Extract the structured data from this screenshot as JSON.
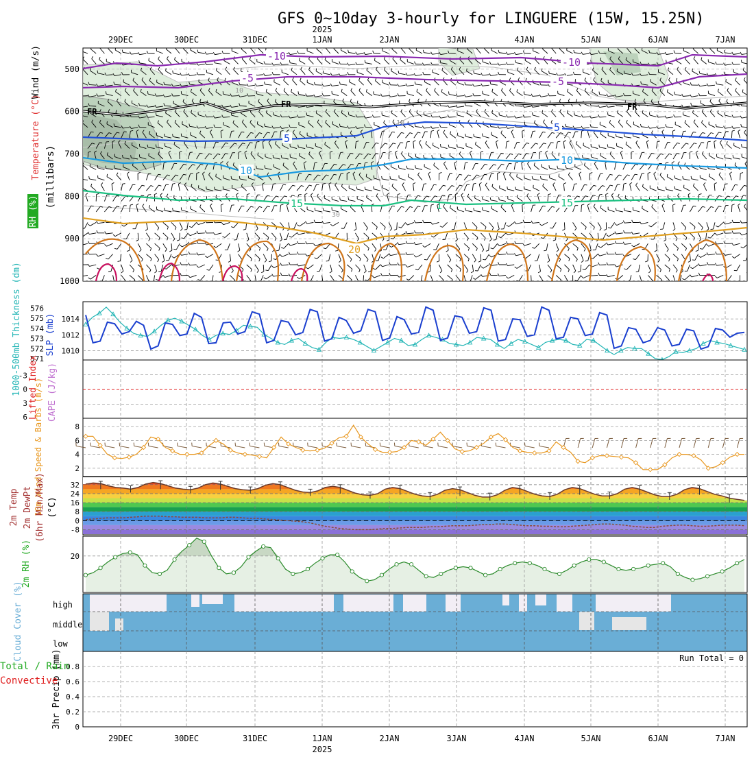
{
  "header": {
    "title": "GFS 0~10day 3-hourly for LINGUERE (15W, 15.25N)",
    "year": "2025",
    "run_total": "Run Total = 0"
  },
  "dates": [
    "29DEC",
    "30DEC",
    "31DEC",
    "1JAN",
    "2JAN",
    "3JAN",
    "4JAN",
    "5JAN",
    "6JAN",
    "7JAN"
  ],
  "colors": {
    "slp": "#1a3fcf",
    "thickness": "#22b5b5",
    "wind_speed": "#e8961c",
    "rh": "#2a8a2a",
    "cloud": "#6aaed6",
    "li": "#e02020",
    "cape": "#c070d0",
    "temp_label": "#e03030",
    "rh_label": "#22aa22"
  },
  "chart_data": [
    {
      "id": "upper-air",
      "type": "contour",
      "ylabel_parts": [
        "Wind (m/s)",
        "Temperature (°C)",
        "RH (%)",
        "(millibars)"
      ],
      "y_ticks": [
        "500",
        "600",
        "700",
        "800",
        "900",
        "1000"
      ],
      "ylim": [
        450,
        1000
      ],
      "contour_labels": [
        "-10",
        "-10",
        "-5",
        "-5",
        "FR",
        "FR",
        "FR",
        "-10",
        "5",
        "5",
        "10",
        "10",
        "15",
        "15",
        "1",
        "20",
        "30",
        "10"
      ],
      "isotherms_c": [
        -10,
        -5,
        0,
        5,
        10,
        15,
        20,
        25,
        30
      ]
    },
    {
      "id": "slp-thickness",
      "type": "line",
      "ylabel_left": "1000-500mb Thickness (dm)",
      "ylabel_right": "SLP (mb)",
      "left_ticks": [
        "576",
        "575",
        "574",
        "573",
        "572",
        "571"
      ],
      "right_ticks": [
        "1014",
        "1012",
        "1010"
      ],
      "slp_range": [
        1009,
        1016
      ],
      "thick_range": [
        571,
        576.5
      ],
      "series": [
        {
          "name": "SLP (mb)",
          "values": [
            1014.5,
            1011.0,
            1011.2,
            1013.6,
            1013.4,
            1012.1,
            1012.4,
            1013.7,
            1013.2,
            1010.2,
            1010.6,
            1013.5,
            1013.3,
            1011.9,
            1012.1,
            1014.7,
            1014.2,
            1010.9,
            1011.0,
            1013.5,
            1013.6,
            1012.1,
            1012.4,
            1014.9,
            1014.6,
            1011.0,
            1011.3,
            1013.8,
            1013.6,
            1012.0,
            1012.3,
            1015.2,
            1014.9,
            1011.2,
            1011.5,
            1014.2,
            1013.8,
            1012.2,
            1012.5,
            1015.2,
            1014.9,
            1011.3,
            1011.6,
            1014.3,
            1013.9,
            1012.1,
            1012.3,
            1015.5,
            1015.1,
            1011.3,
            1011.6,
            1014.4,
            1014.2,
            1012.2,
            1012.4,
            1015.4,
            1015.1,
            1011.2,
            1011.4,
            1014.0,
            1013.9,
            1011.8,
            1012.0,
            1015.5,
            1015.1,
            1011.5,
            1011.7,
            1014.2,
            1014.0,
            1011.9,
            1012.1,
            1014.8,
            1014.5,
            1010.3,
            1010.6,
            1012.9,
            1012.7,
            1011.0,
            1011.3,
            1012.9,
            1012.6,
            1010.6,
            1010.8,
            1012.7,
            1012.5,
            1010.2,
            1010.5,
            1012.8,
            1012.6,
            1011.7,
            1012.2,
            1012.3
          ]
        },
        {
          "name": "Thickness (dm)",
          "values": [
            574.4,
            575.1,
            575.5,
            576.1,
            575.4,
            574.6,
            574.0,
            573.5,
            573.3,
            573.2,
            573.7,
            574.3,
            574.8,
            575.0,
            574.7,
            574.3,
            573.9,
            573.3,
            572.9,
            573.3,
            573.5,
            573.4,
            573.8,
            574.3,
            574.2,
            574.1,
            573.4,
            573.0,
            572.6,
            572.4,
            572.8,
            573.0,
            572.5,
            572.1,
            571.9,
            572.6,
            573.1,
            573.0,
            573.1,
            572.9,
            572.6,
            572.2,
            571.8,
            572.2,
            572.6,
            573.0,
            572.8,
            572.3,
            572.4,
            572.9,
            573.3,
            573.1,
            572.9,
            572.5,
            572.4,
            572.3,
            572.6,
            573.1,
            573.0,
            572.9,
            572.4,
            572.0,
            572.5,
            572.9,
            572.7,
            572.4,
            572.1,
            572.6,
            572.8,
            572.9,
            572.8,
            572.4,
            572.3,
            572.9,
            572.8,
            572.3,
            571.8,
            571.4,
            571.8,
            572.1,
            572.0,
            572.0,
            571.5,
            571.0,
            570.9,
            571.2,
            571.7,
            571.6,
            571.8,
            572.0,
            572.5,
            572.8,
            572.6,
            572.5,
            572.3,
            572.1,
            571.9
          ]
        }
      ]
    },
    {
      "id": "stability",
      "type": "line",
      "ylabel_left": "Lifted Index",
      "ylabel_right": "CAPE (J/kg)",
      "y_ticks": [
        "-3",
        "0",
        "3",
        "6"
      ],
      "ylim": [
        -6,
        6
      ]
    },
    {
      "id": "wind10m",
      "type": "line",
      "ylabel": "10m Wind Speed & Barbs (m/s)",
      "y_ticks": [
        "8",
        "6",
        "4",
        "2"
      ],
      "ylim": [
        1,
        9
      ],
      "series": [
        {
          "name": "10m Wind Speed (m/s)",
          "values": [
            6.6,
            6.6,
            5.3,
            4.0,
            3.5,
            3.4,
            3.6,
            4.0,
            5.0,
            6.5,
            6.2,
            5.0,
            4.5,
            4.0,
            4.0,
            4.0,
            4.2,
            5.2,
            6.0,
            5.5,
            4.6,
            4.2,
            4.0,
            3.9,
            3.7,
            3.5,
            5.0,
            6.5,
            5.5,
            5.0,
            4.6,
            4.5,
            4.6,
            4.9,
            5.6,
            6.4,
            6.6,
            8.2,
            6.5,
            5.5,
            4.7,
            4.3,
            4.3,
            4.4,
            5.0,
            6.0,
            5.8,
            5.3,
            6.2,
            7.2,
            6.0,
            4.8,
            4.4,
            4.5,
            5.0,
            5.6,
            6.5,
            7.0,
            6.1,
            5.0,
            4.5,
            4.3,
            4.2,
            4.2,
            4.5,
            5.8,
            5.0,
            4.3,
            3.0,
            2.8,
            3.5,
            3.8,
            3.8,
            3.7,
            3.6,
            3.5,
            2.8,
            1.8,
            1.8,
            1.8,
            2.5,
            3.5,
            4.0,
            4.0,
            3.8,
            3.2,
            2.0,
            2.2,
            2.8,
            3.6,
            4.0,
            4.0
          ]
        }
      ]
    },
    {
      "id": "temperature",
      "type": "area",
      "ylabel_parts": [
        "2m Temp",
        "2m DewPt",
        "(6hr Min/Max)",
        "(°C)"
      ],
      "y_ticks": [
        "32",
        "24",
        "16",
        "8",
        "0",
        "-8"
      ],
      "ylim": [
        -12,
        38
      ],
      "series": [
        {
          "name": "2m Temp (°C)",
          "values": [
            32.5,
            33.5,
            33.0,
            31.0,
            29.5,
            29.0,
            28.0,
            29.5,
            32.5,
            34.0,
            33.0,
            31.0,
            29.0,
            28.0,
            27.5,
            29.0,
            32.0,
            33.5,
            32.5,
            30.5,
            28.5,
            27.5,
            27.0,
            28.5,
            31.5,
            33.0,
            32.0,
            29.5,
            27.0,
            25.5,
            25.0,
            26.5,
            29.5,
            30.5,
            29.5,
            27.0,
            24.5,
            23.0,
            22.5,
            24.0,
            28.0,
            29.5,
            28.5,
            26.0,
            23.5,
            22.0,
            21.5,
            23.5,
            27.0,
            28.5,
            27.5,
            25.0,
            22.5,
            21.0,
            21.0,
            23.0,
            27.0,
            29.5,
            28.5,
            26.0,
            23.5,
            22.0,
            21.5,
            23.5,
            27.5,
            29.5,
            28.5,
            26.0,
            23.5,
            22.0,
            22.0,
            24.0,
            28.0,
            29.5,
            28.0,
            25.5,
            23.0,
            21.5,
            21.5,
            23.5,
            27.5,
            29.5,
            28.5,
            26.0,
            23.5,
            22.0,
            20.0,
            19.0,
            18.0
          ]
        },
        {
          "name": "2m DewPt (°C)",
          "values": [
            1.0,
            1.5,
            2.0,
            2.5,
            2.5,
            2.5,
            3.0,
            3.5,
            4.0,
            4.0,
            4.0,
            3.5,
            3.5,
            3.0,
            3.0,
            3.0,
            2.5,
            2.5,
            2.5,
            3.0,
            3.0,
            2.5,
            2.0,
            2.0,
            1.5,
            1.0,
            0.5,
            0.0,
            -0.5,
            -1.0,
            -2.0,
            -3.5,
            -5.0,
            -6.0,
            -7.0,
            -7.5,
            -8.0,
            -8.0,
            -8.0,
            -7.5,
            -7.0,
            -7.0,
            -6.5,
            -6.0,
            -6.0,
            -6.0,
            -5.5,
            -5.5,
            -5.0,
            -4.5,
            -4.5,
            -4.5,
            -4.0,
            -3.5,
            -3.5,
            -3.0,
            -3.0,
            -3.5,
            -4.0,
            -4.5,
            -4.5,
            -5.0,
            -5.0,
            -5.5,
            -5.5,
            -5.0,
            -4.5,
            -4.0,
            -3.5,
            -3.0,
            -3.0,
            -3.5,
            -4.0,
            -5.0,
            -5.5,
            -6.0,
            -6.0,
            -5.0,
            -4.5,
            -4.0,
            -4.0,
            -4.5,
            -5.0,
            -5.0,
            -4.5,
            -4.0,
            -4.0,
            -4.0,
            -4.5
          ]
        }
      ]
    },
    {
      "id": "rh2m",
      "type": "area",
      "ylabel": "2m RH (%)",
      "y_ticks": [
        "20"
      ],
      "ylim": [
        5,
        28
      ],
      "series": [
        {
          "name": "2m RH (%)",
          "values": [
            12.0,
            13.0,
            15.0,
            17.5,
            19.5,
            21.0,
            21.5,
            20.5,
            16.0,
            13.0,
            12.5,
            14.0,
            18.5,
            22.0,
            24.5,
            27.5,
            26.0,
            20.0,
            15.0,
            12.5,
            13.0,
            15.5,
            19.5,
            22.0,
            24.0,
            23.5,
            19.0,
            14.5,
            12.5,
            13.0,
            14.5,
            17.0,
            19.0,
            20.5,
            20.5,
            17.5,
            13.5,
            11.0,
            9.5,
            10.0,
            12.0,
            14.5,
            16.5,
            17.5,
            16.5,
            14.0,
            11.5,
            11.0,
            12.5,
            14.0,
            15.0,
            15.5,
            15.0,
            13.5,
            12.0,
            12.5,
            14.5,
            16.0,
            17.0,
            17.5,
            17.0,
            16.0,
            14.5,
            13.0,
            12.5,
            14.0,
            16.0,
            17.5,
            18.5,
            18.5,
            17.5,
            16.0,
            14.5,
            14.0,
            14.5,
            15.0,
            16.0,
            16.5,
            17.0,
            15.5,
            12.5,
            11.0,
            10.0,
            10.5,
            11.5,
            12.5,
            13.5,
            15.0,
            17.0,
            18.5
          ]
        }
      ]
    },
    {
      "id": "cloud",
      "type": "heatmap",
      "ylabel": "Cloud Cover (%)",
      "y_ticks": [
        "high",
        "middle",
        "low"
      ]
    },
    {
      "id": "precip",
      "type": "bar",
      "ylabel_left": "3hr Precip (mm)",
      "ylabel_extra": [
        "Total / Rain",
        "Convective"
      ],
      "y_ticks": [
        "0.8",
        "0.6",
        "0.4",
        "0.2",
        "0"
      ],
      "ylim": [
        0,
        1.0
      ],
      "values": []
    }
  ]
}
